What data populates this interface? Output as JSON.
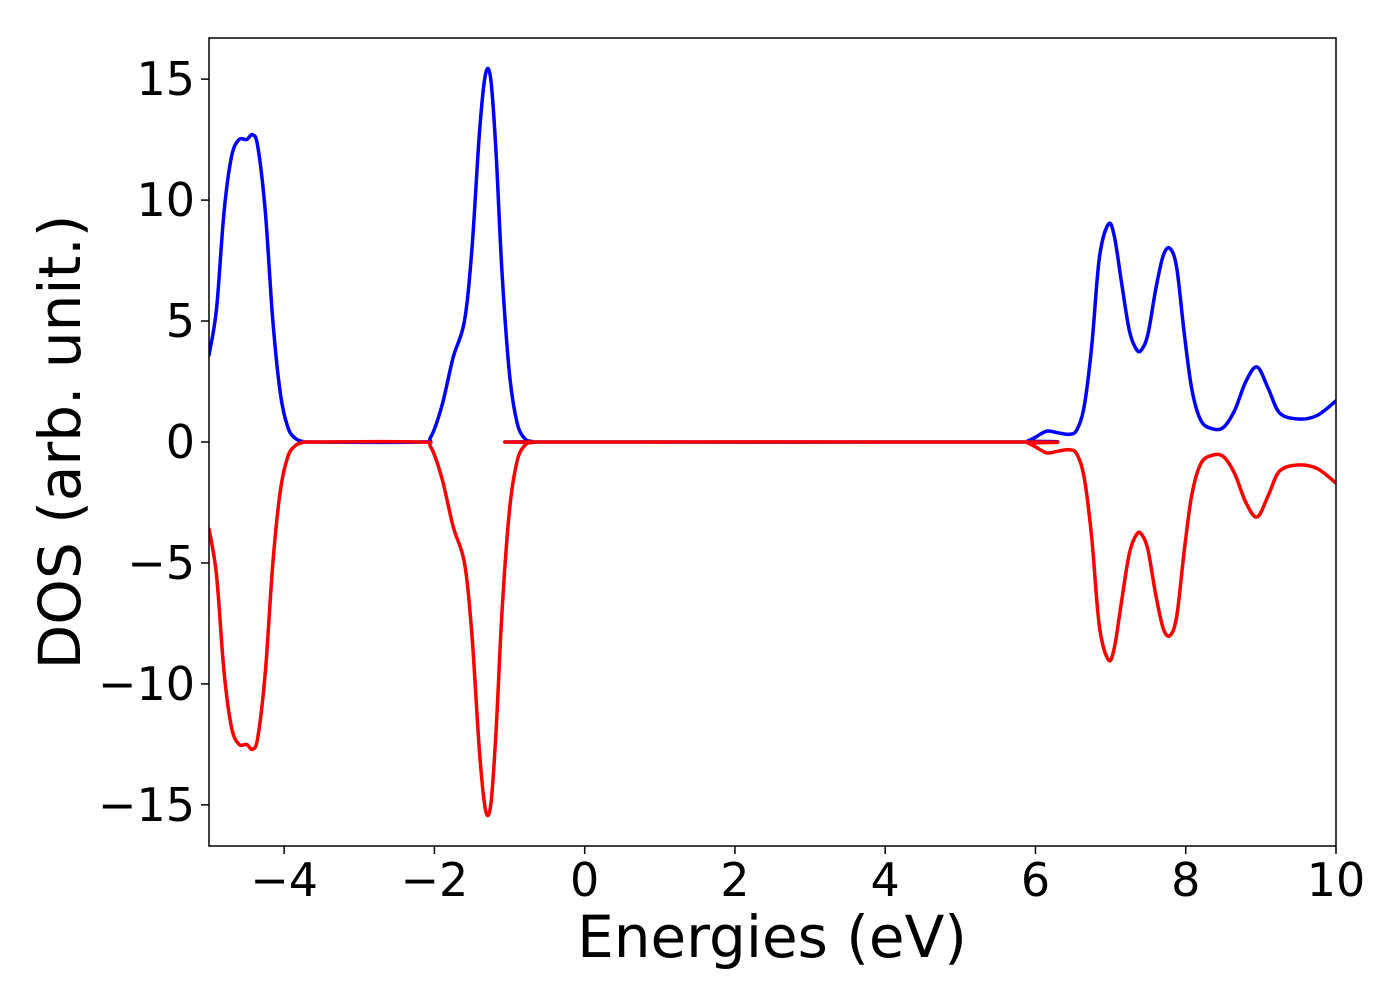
{
  "chart_data": {
    "type": "line",
    "title": "",
    "xlabel": "Energies (eV)",
    "ylabel": "DOS (arb. unit.)",
    "xlim": [
      -5,
      10
    ],
    "ylim": [
      -16.7,
      16.7
    ],
    "xticks": [
      -4,
      -2,
      0,
      2,
      4,
      6,
      8,
      10
    ],
    "xtick_labels": [
      "−4",
      "−2",
      "0",
      "2",
      "4",
      "6",
      "8",
      "10"
    ],
    "yticks": [
      -15,
      -10,
      -5,
      0,
      5,
      10,
      15
    ],
    "ytick_labels": [
      "−15",
      "−10",
      "−5",
      "0",
      "5",
      "10",
      "15"
    ],
    "grid": false,
    "legend": "none",
    "series": [
      {
        "color": "#0000ff",
        "x": [
          -5.0,
          -4.9,
          -4.8,
          -4.7,
          -4.6,
          -4.5,
          -4.42,
          -4.35,
          -4.25,
          -4.15,
          -4.05,
          -3.95,
          -3.85,
          -3.75,
          -3.6,
          -2.2,
          -2.05,
          -1.9,
          -1.75,
          -1.6,
          -1.5,
          -1.4,
          -1.32,
          -1.25,
          -1.18,
          -1.1,
          -1.0,
          -0.9,
          -0.8,
          -0.7,
          -0.55,
          5.8,
          5.9,
          6.0,
          6.15,
          6.3,
          6.45,
          6.55,
          6.65,
          6.75,
          6.85,
          6.97,
          7.05,
          7.15,
          7.25,
          7.35,
          7.42,
          7.5,
          7.6,
          7.7,
          7.79,
          7.88,
          7.98,
          8.08,
          8.2,
          8.35,
          8.5,
          8.65,
          8.8,
          8.95,
          9.1,
          9.25,
          9.5,
          9.75,
          10.0
        ],
        "y": [
          3.6,
          5.5,
          9.5,
          11.8,
          12.5,
          12.5,
          12.7,
          12.2,
          9.5,
          5.0,
          2.0,
          0.6,
          0.15,
          0.02,
          0.0,
          0.0,
          0.2,
          1.5,
          3.5,
          5.0,
          8.0,
          12.8,
          15.2,
          15.0,
          12.0,
          7.0,
          2.8,
          0.8,
          0.15,
          0.02,
          0.0,
          0.0,
          0.05,
          0.2,
          0.45,
          0.38,
          0.32,
          0.5,
          1.5,
          4.0,
          7.6,
          9.0,
          8.5,
          6.5,
          4.6,
          3.8,
          3.85,
          4.5,
          6.3,
          7.7,
          8.0,
          7.2,
          4.5,
          2.2,
          0.9,
          0.55,
          0.6,
          1.3,
          2.5,
          3.1,
          2.2,
          1.2,
          0.95,
          1.1,
          1.7
        ]
      },
      {
        "color": "#ff0000",
        "x": [
          -5.0,
          -4.9,
          -4.8,
          -4.7,
          -4.6,
          -4.5,
          -4.42,
          -4.35,
          -4.25,
          -4.15,
          -4.05,
          -3.95,
          -3.85,
          -3.75,
          -3.6,
          -2.2,
          -2.05,
          -1.9,
          -1.75,
          -1.6,
          -1.5,
          -1.4,
          -1.32,
          -1.25,
          -1.18,
          -1.1,
          -1.0,
          -0.9,
          -0.8,
          -0.7,
          -0.55,
          5.8,
          5.9,
          6.0,
          6.15,
          6.3,
          6.45,
          6.55,
          6.65,
          6.75,
          6.85,
          6.97,
          7.05,
          7.15,
          7.25,
          7.35,
          7.42,
          7.5,
          7.6,
          7.7,
          7.79,
          7.88,
          7.98,
          8.08,
          8.2,
          8.35,
          8.5,
          8.65,
          8.8,
          8.95,
          9.1,
          9.25,
          9.5,
          9.75,
          10.0
        ],
        "y": [
          -3.6,
          -5.5,
          -9.5,
          -11.8,
          -12.5,
          -12.5,
          -12.7,
          -12.2,
          -9.5,
          -5.0,
          -2.0,
          -0.6,
          -0.15,
          -0.02,
          0.0,
          0.0,
          -0.2,
          -1.5,
          -3.5,
          -5.0,
          -8.0,
          -12.8,
          -15.2,
          -15.0,
          -12.0,
          -7.0,
          -2.8,
          -0.8,
          -0.15,
          -0.02,
          0.0,
          0.0,
          -0.05,
          -0.2,
          -0.45,
          -0.38,
          -0.32,
          -0.5,
          -1.5,
          -4.0,
          -7.6,
          -9.0,
          -8.5,
          -6.5,
          -4.6,
          -3.8,
          -3.85,
          -4.5,
          -6.3,
          -7.7,
          -8.0,
          -7.2,
          -4.5,
          -2.2,
          -0.9,
          -0.55,
          -0.6,
          -1.3,
          -2.5,
          -3.1,
          -2.2,
          -1.2,
          -0.95,
          -1.1,
          -1.7
        ]
      }
    ]
  }
}
